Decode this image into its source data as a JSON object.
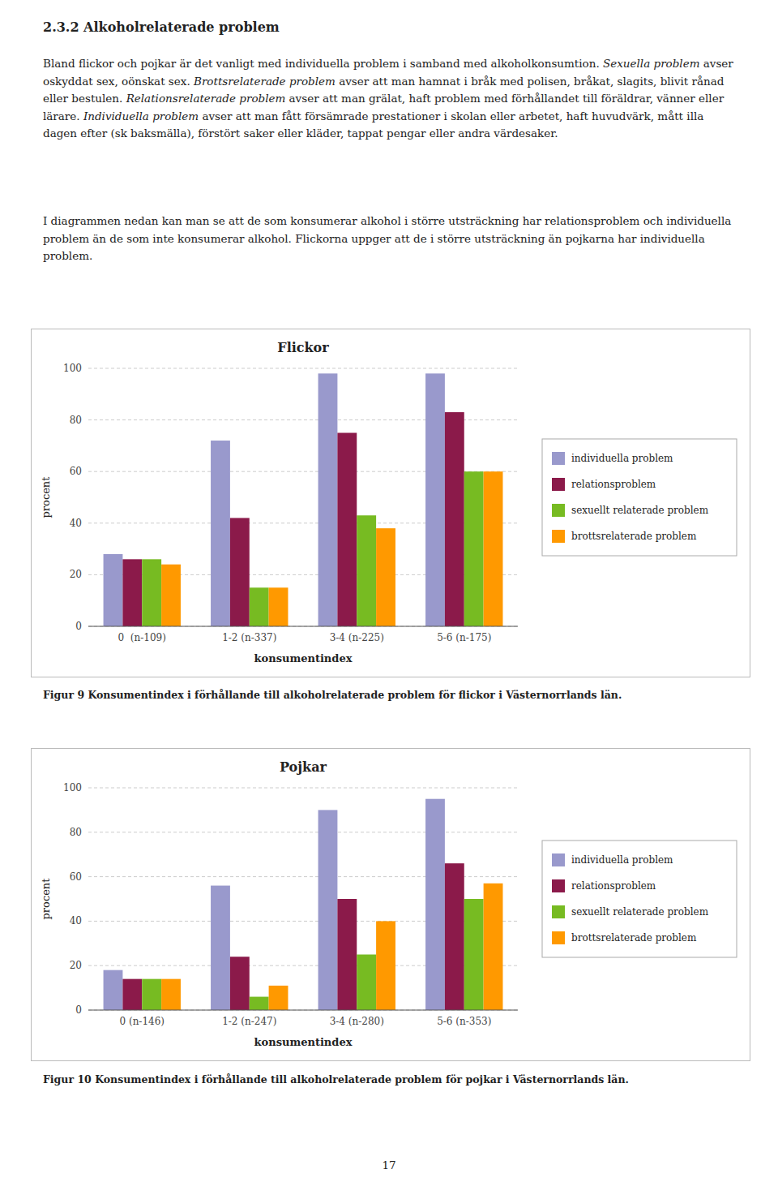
{
  "heading": "2.3.2  Alkoholrelaterade problem",
  "paragraphs": [
    [
      "Bland flickor och pojkar är det vanligt med individuella problem i samband med alkoholkonsumtion. ",
      "Sexuella problem",
      " avser oskyddat sex, oönskat sex. ",
      "Brottsrelaterade problem",
      " avser att man hamnat i bråk med polisen, bråkat, slagits, blivit rånad eller bestulen. ",
      "Relationsrelaterade problem",
      " avser att man grälat, haft problem med förhållandet till föräldrar, vänner eller lärare. ",
      "Individuella problem",
      " avser att man fått försämrade prestationer i skolan eller arbetet, haft huvudvärk, mått illa dagen efter (sk baksmälla), förstört saker eller kläder, tappat pengar eller andra värdesaker."
    ],
    [
      "I diagrammen nedan kan man se att de som konsumerar alkohol i större utsträckning har relationsproblem och individuella problem än de som inte konsumerar alkohol. Flickorna uppger att de i större utsträckning än pojkarna har individuella problem."
    ]
  ],
  "chart_data": [
    {
      "type": "bar",
      "title": "Flickor",
      "categories": [
        "0  (n-109)",
        "1-2 (n-337)",
        "3-4 (n-225)",
        "5-6 (n-175)"
      ],
      "series": [
        {
          "name": "individuella problem",
          "color": "#9999CC",
          "values": [
            28,
            72,
            98,
            98
          ]
        },
        {
          "name": "relationsproblem",
          "color": "#8B1A4A",
          "values": [
            26,
            42,
            75,
            83
          ]
        },
        {
          "name": "sexuellt relaterade problem",
          "color": "#77BB22",
          "values": [
            26,
            15,
            43,
            60
          ]
        },
        {
          "name": "brottsrelaterade problem",
          "color": "#FF9900",
          "values": [
            24,
            15,
            38,
            60
          ]
        }
      ],
      "xlabel": "konsumentindex",
      "ylabel": "procent",
      "ylim": [
        0,
        100
      ],
      "yticks": [
        0,
        20,
        40,
        60,
        80,
        100
      ],
      "grid": true,
      "legend": "right"
    },
    {
      "type": "bar",
      "title": "Pojkar",
      "categories": [
        "0 (n-146)",
        "1-2 (n-247)",
        "3-4 (n-280)",
        "5-6 (n-353)"
      ],
      "series": [
        {
          "name": "individuella problem",
          "color": "#9999CC",
          "values": [
            18,
            56,
            90,
            95
          ]
        },
        {
          "name": "relationsproblem",
          "color": "#8B1A4A",
          "values": [
            14,
            24,
            50,
            66
          ]
        },
        {
          "name": "sexuellt relaterade problem",
          "color": "#77BB22",
          "values": [
            14,
            6,
            25,
            50
          ]
        },
        {
          "name": "brottsrelaterade problem",
          "color": "#FF9900",
          "values": [
            14,
            11,
            40,
            57
          ]
        }
      ],
      "xlabel": "konsumentindex",
      "ylabel": "procent",
      "ylim": [
        0,
        100
      ],
      "yticks": [
        0,
        20,
        40,
        60,
        80,
        100
      ],
      "grid": true,
      "legend": "right"
    }
  ],
  "captions": [
    "Figur 9 Konsumentindex i förhållande till alkoholrelaterade problem för flickor i Västernorrlands län.",
    "Figur 10 Konsumentindex i förhållande till alkoholrelaterade problem för pojkar i Västernorrlands län."
  ],
  "page_number": "17"
}
